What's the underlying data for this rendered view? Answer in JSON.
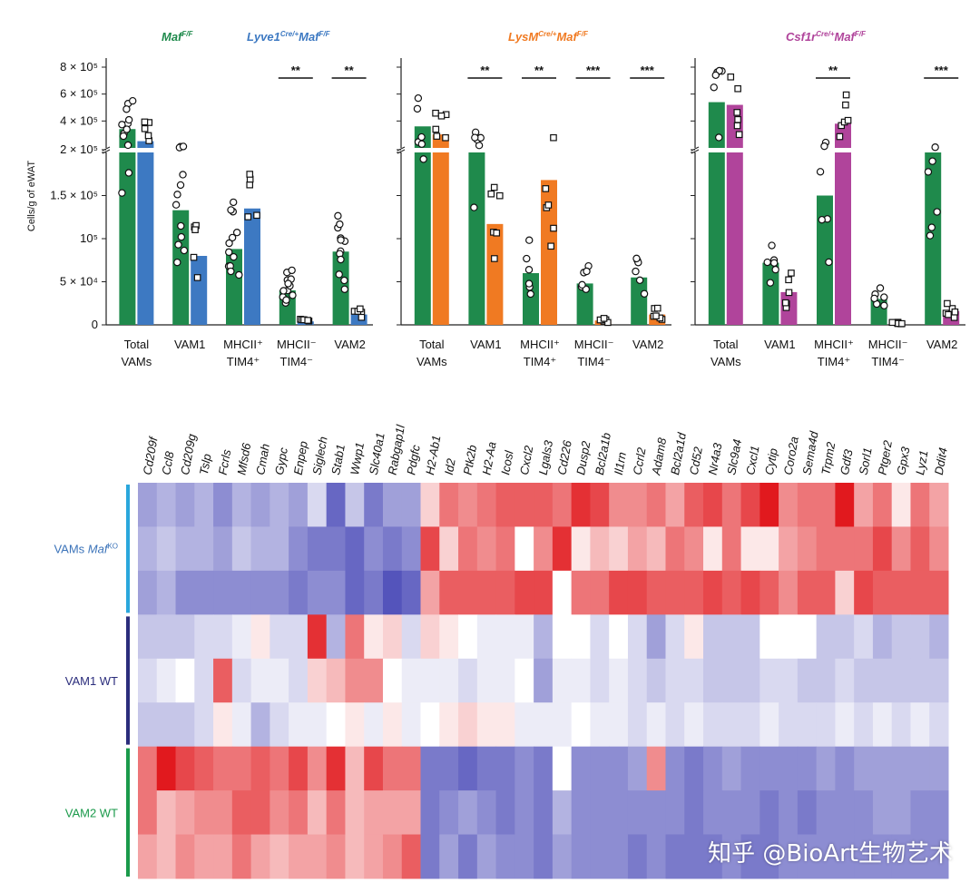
{
  "watermark": "知乎 @BioArt生物艺术",
  "chart_data": [
    {
      "type": "bar",
      "panel": "Maf / Lyve1-Cre",
      "ylabel": "Cells/g of eWAT",
      "y_ticks_upper": [
        "8 × 10⁵",
        "6 × 10⁵",
        "4 × 10⁵",
        "2 × 10⁵"
      ],
      "y_ticks_lower": [
        "2 × 10⁵",
        "1.5 × 10⁵",
        "10⁵",
        "5 × 10⁴",
        "0"
      ],
      "categories": [
        "Total VAMs",
        "VAM1",
        "MHCII⁺ TIM4⁺",
        "MHCII⁻ TIM4⁻",
        "VAM2"
      ],
      "category_lines": [
        [
          "Total",
          "VAMs"
        ],
        [
          "VAM1",
          ""
        ],
        [
          "MHCII⁺",
          "TIM4⁺"
        ],
        [
          "MHCII⁻",
          "TIM4⁻"
        ],
        [
          "VAM2",
          ""
        ]
      ],
      "series": [
        {
          "base": "Maf",
          "sup": "F/F",
          "prefix": "",
          "prefix_sup": "",
          "color": "#1f8a4c",
          "values": [
            340000,
            133000,
            88000,
            40000,
            85000
          ]
        },
        {
          "base": "Maf",
          "sup": "F/F",
          "prefix": "Lyve1",
          "prefix_sup": "Cre/+",
          "color": "#3d79c2",
          "values": [
            250000,
            80000,
            135000,
            4000,
            12000
          ]
        }
      ],
      "significance": [
        "",
        "",
        "",
        "**",
        "**"
      ]
    },
    {
      "type": "bar",
      "panel": "LysM-Cre",
      "categories": [
        "Total VAMs",
        "VAM1",
        "MHCII⁺ TIM4⁺",
        "MHCII⁻ TIM4⁻",
        "VAM2"
      ],
      "category_lines": [
        [
          "Total",
          "VAMs"
        ],
        [
          "VAM1",
          ""
        ],
        [
          "MHCII⁺",
          "TIM4⁺"
        ],
        [
          "MHCII⁻",
          "TIM4⁻"
        ],
        [
          "VAM2",
          ""
        ]
      ],
      "series": [
        {
          "base": "Maf",
          "sup": "F/F",
          "prefix": "LysM",
          "prefix_sup": "Cre/+",
          "color": "#f07a22",
          "values": [
            300000,
            117000,
            168000,
            5000,
            12000
          ]
        },
        {
          "color": "#1f8a4c",
          "values": [
            360000,
            200000,
            60000,
            48000,
            55000
          ]
        }
      ],
      "significance": [
        "",
        "**",
        "**",
        "***",
        "***"
      ]
    },
    {
      "type": "bar",
      "panel": "Csf1r-Cre",
      "categories": [
        "Total VAMs",
        "VAM1",
        "MHCII⁺ TIM4⁺",
        "MHCII⁻ TIM4⁻",
        "VAM2"
      ],
      "category_lines": [
        [
          "Total",
          "VAMs"
        ],
        [
          "VAM1",
          ""
        ],
        [
          "MHCII⁺",
          "TIM4⁺"
        ],
        [
          "MHCII⁻",
          "TIM4⁻"
        ],
        [
          "VAM2",
          ""
        ]
      ],
      "series": [
        {
          "base": "Maf",
          "sup": "F/F",
          "prefix": "Csf1r",
          "prefix_sup": "Cre/+",
          "color": "#b0449b",
          "values": [
            520000,
            38000,
            380000,
            2000,
            16000
          ]
        },
        {
          "color": "#1f8a4c",
          "values": [
            540000,
            72000,
            150000,
            30000,
            200000
          ]
        }
      ],
      "significance": [
        "",
        "",
        "**",
        "",
        "***"
      ]
    },
    {
      "type": "heatmap",
      "columns": [
        "Cd209f",
        "Ccl8",
        "Cd209g",
        "Tslp",
        "Fcrls",
        "Mfsd6",
        "Cmah",
        "Gypc",
        "Enpep",
        "Siglech",
        "Stab1",
        "Wwp1",
        "Slc40a1",
        "Rabgap1l",
        "Pdgfc",
        "H2-Ab1",
        "Id2",
        "Ptk2b",
        "H2-Aa",
        "Icosl",
        "Cxcl2",
        "Lgals3",
        "Cd226",
        "Dusp2",
        "Bcl2a1b",
        "Il1rn",
        "Ccrl2",
        "Adam8",
        "Bcl2a1d",
        "Cd52",
        "Nr4a3",
        "Slc9a4",
        "Cxcl1",
        "Cytip",
        "Coro2a",
        "Sema4d",
        "Trpm2",
        "Gdf3",
        "Sorl1",
        "Ptger2",
        "Gpx3",
        "Lyz1",
        "Ddit4"
      ],
      "groups": [
        {
          "base": "VAMs ",
          "italic": "Maf",
          "sup": "KO",
          "color": "#2aa7dc",
          "text_color": "#3b73b9",
          "rows": 3
        },
        {
          "base": "VAM1 WT",
          "italic": "",
          "sup": "",
          "color": "#2b2d7c",
          "text_color": "#2b2d7c",
          "rows": 3
        },
        {
          "base": "VAM2 WT",
          "italic": "",
          "sup": "",
          "color": "#1b9a4b",
          "text_color": "#1b9a4b",
          "rows": 3
        }
      ],
      "values": [
        [
          -0.5,
          -0.4,
          -0.5,
          -0.4,
          -0.6,
          -0.4,
          -0.5,
          -0.4,
          -0.5,
          -0.2,
          -0.8,
          -0.3,
          -0.7,
          -0.5,
          -0.5,
          0.2,
          0.6,
          0.5,
          0.6,
          0.7,
          0.7,
          0.7,
          0.6,
          0.9,
          0.8,
          0.5,
          0.5,
          0.6,
          0.4,
          0.7,
          0.8,
          0.6,
          0.8,
          1.0,
          0.5,
          0.6,
          0.6,
          1.0,
          0.4,
          0.6,
          0.1,
          0.6,
          0.4
        ],
        [
          -0.4,
          -0.3,
          -0.4,
          -0.4,
          -0.5,
          -0.3,
          -0.4,
          -0.4,
          -0.6,
          -0.7,
          -0.7,
          -0.8,
          -0.6,
          -0.7,
          -0.6,
          0.8,
          0.2,
          0.6,
          0.5,
          0.6,
          0.0,
          0.5,
          0.9,
          0.1,
          0.3,
          0.2,
          0.4,
          0.3,
          0.6,
          0.5,
          0.1,
          0.6,
          0.1,
          0.1,
          0.4,
          0.5,
          0.6,
          0.6,
          0.6,
          0.8,
          0.5,
          0.7,
          0.5
        ],
        [
          -0.5,
          -0.4,
          -0.6,
          -0.6,
          -0.6,
          -0.6,
          -0.6,
          -0.6,
          -0.7,
          -0.6,
          -0.6,
          -0.8,
          -0.7,
          -0.9,
          -0.8,
          0.4,
          0.7,
          0.7,
          0.7,
          0.7,
          0.8,
          0.8,
          0.0,
          0.6,
          0.6,
          0.8,
          0.8,
          0.7,
          0.7,
          0.7,
          0.8,
          0.7,
          0.8,
          0.7,
          0.5,
          0.7,
          0.7,
          0.2,
          0.8,
          0.7,
          0.7,
          0.7,
          0.7
        ],
        [
          -0.3,
          -0.3,
          -0.3,
          -0.2,
          -0.2,
          -0.1,
          0.1,
          -0.2,
          -0.2,
          0.9,
          -0.4,
          0.6,
          0.1,
          0.2,
          -0.2,
          0.2,
          0.1,
          0.0,
          -0.1,
          -0.1,
          -0.1,
          -0.4,
          0.0,
          0.0,
          -0.2,
          0.0,
          -0.2,
          -0.5,
          -0.2,
          0.1,
          -0.3,
          -0.3,
          -0.3,
          0.0,
          0.0,
          0.0,
          -0.3,
          -0.3,
          -0.2,
          -0.4,
          -0.3,
          -0.3,
          -0.4
        ],
        [
          -0.2,
          -0.1,
          0.0,
          -0.2,
          0.7,
          -0.2,
          -0.1,
          -0.1,
          -0.2,
          0.2,
          0.3,
          0.5,
          0.5,
          0.0,
          -0.1,
          -0.1,
          -0.1,
          -0.2,
          -0.1,
          -0.1,
          0.0,
          -0.5,
          -0.1,
          -0.1,
          -0.2,
          -0.1,
          -0.2,
          -0.3,
          -0.2,
          -0.2,
          -0.3,
          -0.3,
          -0.3,
          -0.2,
          -0.2,
          -0.3,
          -0.3,
          -0.2,
          -0.3,
          -0.3,
          -0.3,
          -0.3,
          -0.3
        ],
        [
          -0.3,
          -0.3,
          -0.3,
          -0.2,
          0.1,
          -0.1,
          -0.4,
          -0.2,
          -0.1,
          -0.1,
          0.0,
          0.1,
          -0.1,
          0.1,
          -0.1,
          0.0,
          0.1,
          0.2,
          0.1,
          0.1,
          -0.1,
          -0.1,
          -0.1,
          0.0,
          -0.1,
          -0.1,
          -0.2,
          -0.1,
          -0.2,
          -0.1,
          -0.2,
          -0.2,
          -0.2,
          -0.1,
          -0.2,
          -0.2,
          -0.2,
          -0.1,
          -0.2,
          -0.1,
          -0.2,
          -0.1,
          -0.2
        ],
        [
          0.6,
          1.0,
          0.8,
          0.7,
          0.6,
          0.6,
          0.7,
          0.6,
          0.8,
          0.5,
          0.9,
          0.3,
          0.8,
          0.6,
          0.6,
          -0.7,
          -0.7,
          -0.8,
          -0.7,
          -0.7,
          -0.6,
          -0.7,
          0.0,
          -0.6,
          -0.6,
          -0.6,
          -0.5,
          0.5,
          -0.6,
          -0.7,
          -0.6,
          -0.5,
          -0.6,
          -0.6,
          -0.6,
          -0.6,
          -0.5,
          -0.6,
          -0.5,
          -0.5,
          -0.5,
          -0.5,
          -0.5
        ],
        [
          0.6,
          0.3,
          0.4,
          0.5,
          0.5,
          0.7,
          0.7,
          0.5,
          0.6,
          0.3,
          0.6,
          0.3,
          0.4,
          0.4,
          0.4,
          -0.7,
          -0.6,
          -0.5,
          -0.6,
          -0.7,
          -0.6,
          -0.7,
          -0.4,
          -0.6,
          -0.6,
          -0.6,
          -0.6,
          -0.6,
          -0.6,
          -0.7,
          -0.6,
          -0.6,
          -0.6,
          -0.7,
          -0.6,
          -0.7,
          -0.6,
          -0.6,
          -0.6,
          -0.5,
          -0.5,
          -0.6,
          -0.6
        ],
        [
          0.4,
          0.3,
          0.5,
          0.4,
          0.4,
          0.6,
          0.4,
          0.3,
          0.4,
          0.4,
          0.5,
          0.3,
          0.4,
          0.5,
          0.7,
          -0.7,
          -0.5,
          -0.7,
          -0.5,
          -0.6,
          -0.6,
          -0.7,
          -0.5,
          -0.6,
          -0.6,
          -0.6,
          -0.7,
          -0.6,
          -0.7,
          -0.7,
          -0.7,
          -0.6,
          -0.7,
          -0.7,
          -0.6,
          -0.6,
          -0.6,
          -0.6,
          -0.6,
          -0.6,
          -0.6,
          -0.6,
          -0.6
        ]
      ]
    }
  ]
}
